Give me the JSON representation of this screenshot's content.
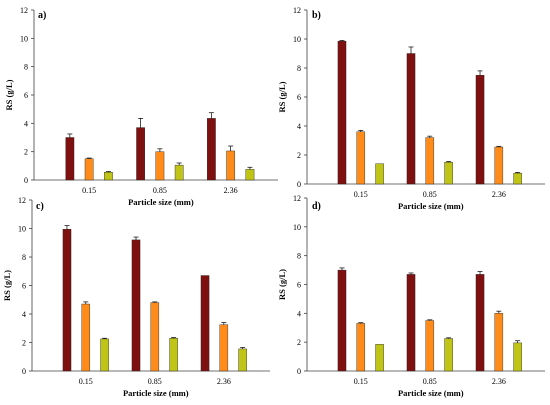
{
  "colors": {
    "bar": [
      "#7f1010",
      "#ff8c1a",
      "#c0c417"
    ],
    "axis": "#404040",
    "error": "#000000"
  },
  "chart_data": [
    {
      "type": "bar",
      "title": "a)",
      "xlabel": "Particle size (mm)",
      "ylabel": "RS (g/L)",
      "categories": [
        "0.15",
        "0.85",
        "2.36"
      ],
      "ylim": [
        0,
        12
      ],
      "yticks": [
        "0",
        "2",
        "4",
        "6",
        "8",
        "10",
        "12"
      ],
      "grid": false,
      "series": [
        {
          "values": [
            3.0,
            3.7,
            4.35
          ],
          "errors": [
            0.25,
            0.65,
            0.4
          ]
        },
        {
          "values": [
            1.5,
            2.0,
            2.05
          ],
          "errors": [
            0.05,
            0.2,
            0.35
          ]
        },
        {
          "values": [
            0.55,
            1.05,
            0.75
          ],
          "errors": [
            0.05,
            0.15,
            0.15
          ]
        }
      ]
    },
    {
      "type": "bar",
      "title": "b)",
      "xlabel": "Particle size (mm)",
      "ylabel": "RS (g/L)",
      "categories": [
        "0.15",
        "0.85",
        "2.36"
      ],
      "ylim": [
        0,
        12
      ],
      "yticks": [
        "0",
        "2",
        "4",
        "6",
        "8",
        "10",
        "12"
      ],
      "grid": false,
      "series": [
        {
          "values": [
            9.85,
            9.0,
            7.5
          ],
          "errors": [
            0.05,
            0.45,
            0.3
          ]
        },
        {
          "values": [
            3.6,
            3.2,
            2.55
          ],
          "errors": [
            0.1,
            0.1,
            0.05
          ]
        },
        {
          "values": [
            1.4,
            1.5,
            0.75
          ],
          "errors": [
            0.0,
            0.05,
            0.05
          ]
        }
      ]
    },
    {
      "type": "bar",
      "title": "c)",
      "xlabel": "Particle size (mm)",
      "ylabel": "RS (g/L)",
      "categories": [
        "0.15",
        "0.85",
        "2.36"
      ],
      "ylim": [
        0,
        12
      ],
      "yticks": [
        "0",
        "2",
        "4",
        "6",
        "8",
        "10",
        "12"
      ],
      "grid": false,
      "series": [
        {
          "values": [
            9.95,
            9.2,
            6.7
          ],
          "errors": [
            0.25,
            0.2,
            0.0
          ]
        },
        {
          "values": [
            4.7,
            4.8,
            3.25
          ],
          "errors": [
            0.15,
            0.05,
            0.15
          ]
        },
        {
          "values": [
            2.25,
            2.3,
            1.55
          ],
          "errors": [
            0.05,
            0.05,
            0.1
          ]
        }
      ]
    },
    {
      "type": "bar",
      "title": "d)",
      "xlabel": "Particle size (mm)",
      "ylabel": "RS (g/L)",
      "categories": [
        "0.15",
        "0.85",
        "2.36"
      ],
      "ylim": [
        0,
        12
      ],
      "yticks": [
        "0",
        "2",
        "4",
        "6",
        "8",
        "10",
        "12"
      ],
      "grid": false,
      "series": [
        {
          "values": [
            7.0,
            6.7,
            6.7
          ],
          "errors": [
            0.15,
            0.1,
            0.2
          ]
        },
        {
          "values": [
            3.3,
            3.5,
            4.0
          ],
          "errors": [
            0.05,
            0.05,
            0.15
          ]
        },
        {
          "values": [
            1.85,
            2.25,
            1.95
          ],
          "errors": [
            0.0,
            0.05,
            0.15
          ]
        }
      ]
    }
  ]
}
